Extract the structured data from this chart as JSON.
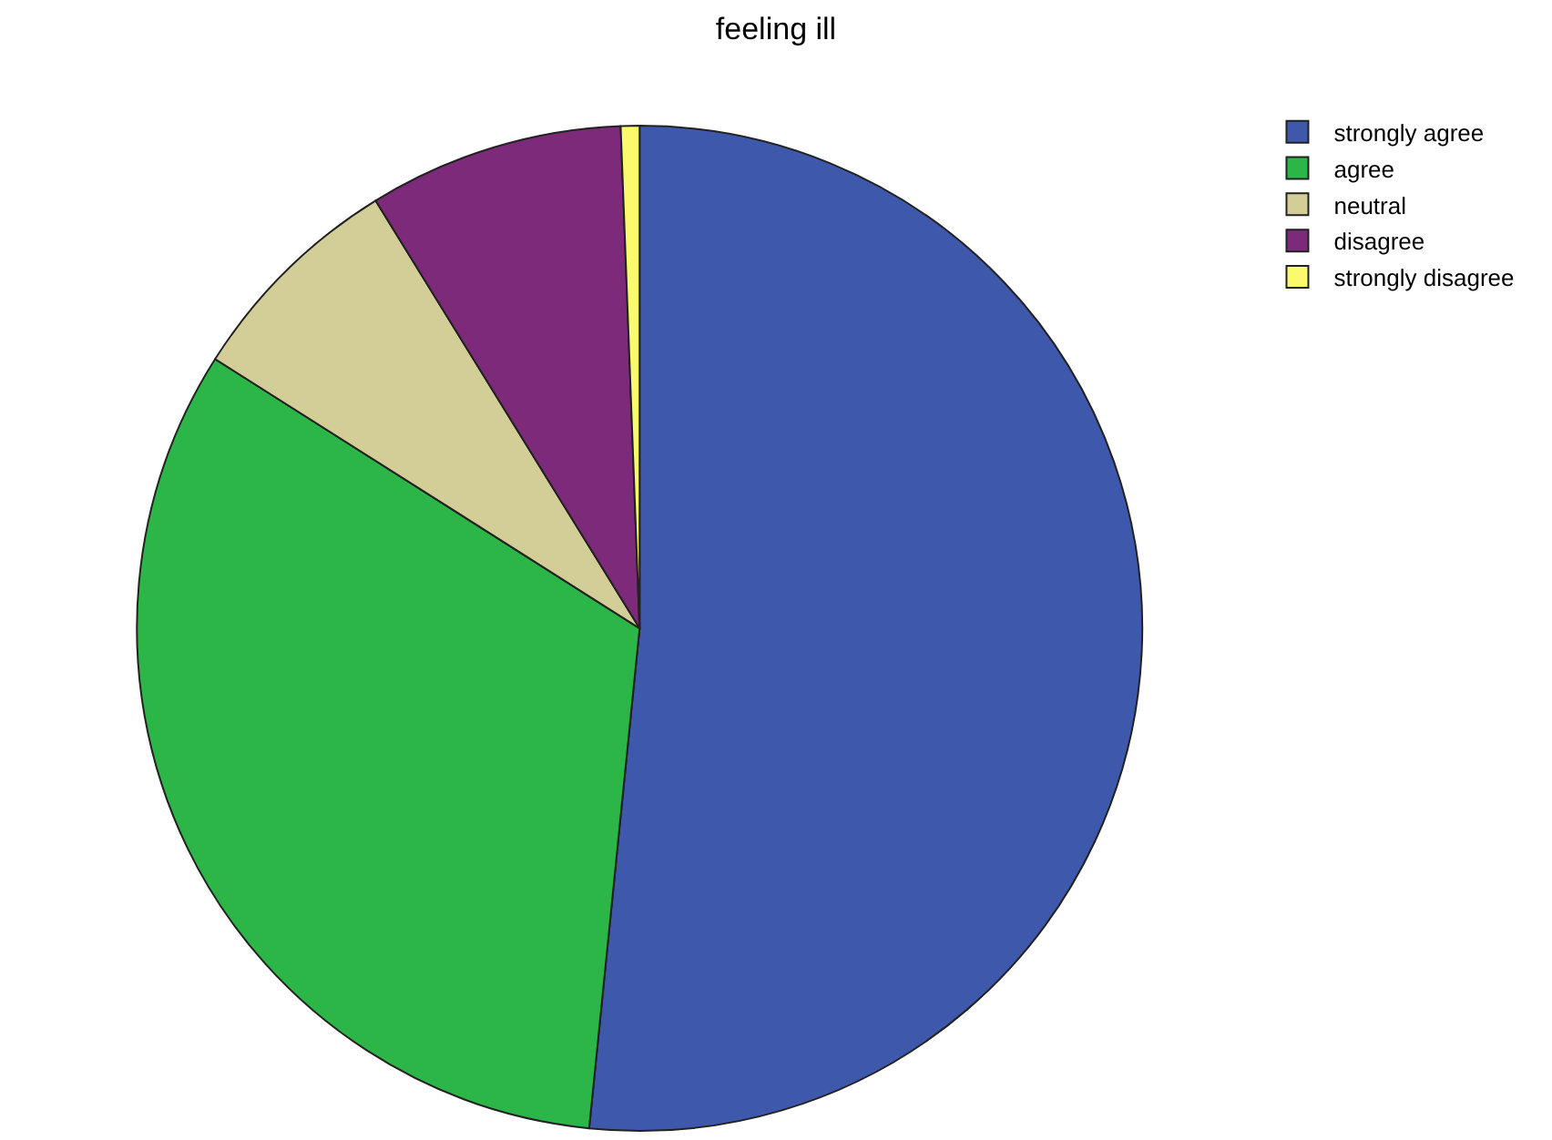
{
  "chart_data": {
    "type": "pie",
    "title": "feeling ill",
    "categories": [
      "strongly agree",
      "agree",
      "neutral",
      "disagree",
      "strongly disagree"
    ],
    "values": [
      51.6,
      32.4,
      7.2,
      8.2,
      0.6
    ],
    "colors": [
      "#3e58ac",
      "#2db648",
      "#d3ce97",
      "#7d2a7a",
      "#fbf96c"
    ],
    "legend": "top right"
  }
}
